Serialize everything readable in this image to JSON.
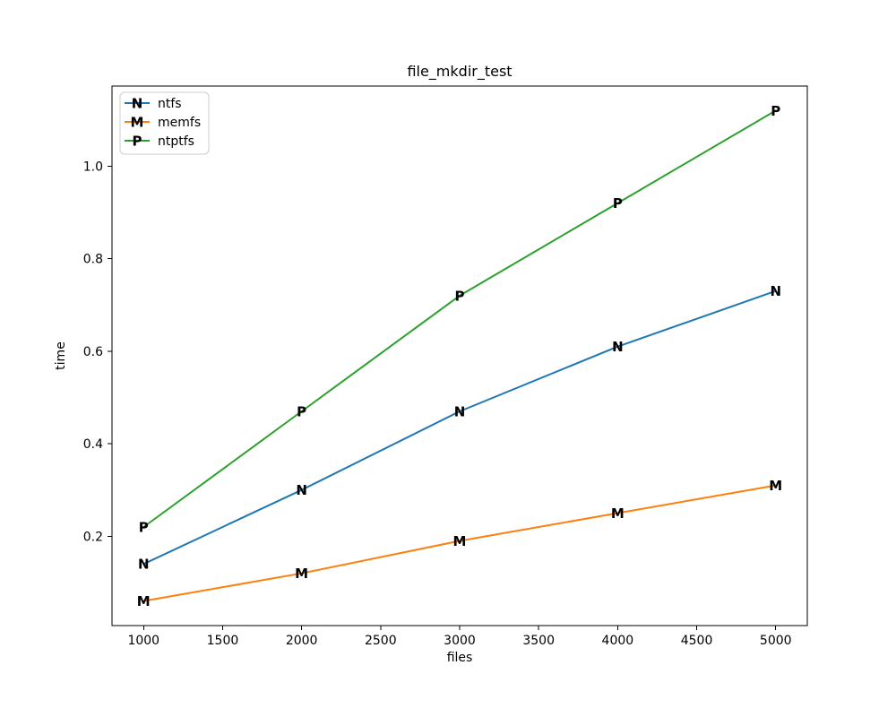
{
  "figure": {
    "background": "#ffffff",
    "text_color": "#000000",
    "legend_border_color": "#cccccc"
  },
  "chart_data": {
    "type": "line",
    "title": "file_mkdir_test",
    "xlabel": "files",
    "ylabel": "time",
    "grid": false,
    "legend_position": "upper-left",
    "x": [
      1000,
      2000,
      3000,
      4000,
      5000
    ],
    "series": [
      {
        "name": "ntfs",
        "color": "#1f77b4",
        "marker": "N",
        "values": [
          0.14,
          0.3,
          0.47,
          0.61,
          0.73
        ]
      },
      {
        "name": "memfs",
        "color": "#ff7f0e",
        "marker": "M",
        "values": [
          0.06,
          0.12,
          0.19,
          0.25,
          0.31
        ]
      },
      {
        "name": "ntptfs",
        "color": "#2ca02c",
        "marker": "P",
        "values": [
          0.22,
          0.47,
          0.72,
          0.92,
          1.12
        ]
      }
    ],
    "x_ticks": [
      1000,
      1500,
      2000,
      2500,
      3000,
      3500,
      4000,
      4500,
      5000
    ],
    "y_ticks": [
      0.2,
      0.4,
      0.6,
      0.8,
      1.0
    ],
    "xlim": [
      800,
      5200
    ],
    "ylim": [
      0.007,
      1.173
    ]
  }
}
